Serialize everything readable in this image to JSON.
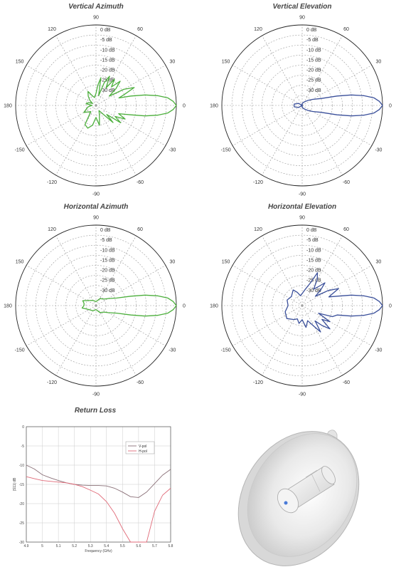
{
  "chart_data": [
    {
      "type": "polar",
      "title": "Vertical Azimuth",
      "angle_tick_labels": [
        "0",
        "30",
        "60",
        "90",
        "120",
        "150",
        "180",
        "-150",
        "-120",
        "-90",
        "-60",
        "-30"
      ],
      "radial_tick_labels": [
        "0 dB",
        "-5 dB",
        "-10 dB",
        "-15 dB",
        "-20 dB",
        "-25 dB",
        "-30 dB"
      ],
      "rlim_db": [
        -40,
        0
      ],
      "color": "#4caf3c",
      "series": [
        {
          "theta_deg": [
            0,
            3,
            6,
            9,
            12,
            15,
            18,
            21,
            25,
            30,
            35,
            40,
            45,
            50,
            55,
            60,
            65,
            70,
            75,
            80,
            85,
            90,
            100,
            110,
            120,
            130,
            140,
            150,
            160,
            170,
            180,
            190,
            200,
            210,
            220,
            230,
            240,
            250,
            260,
            270,
            280,
            290,
            300,
            310,
            315,
            320,
            325,
            330,
            335,
            340,
            345,
            348,
            351,
            354,
            357
          ],
          "gain_db": [
            0,
            -1.5,
            -4,
            -9,
            -15,
            -22,
            -28,
            -25,
            -19,
            -24,
            -32,
            -27,
            -23,
            -28,
            -24,
            -30,
            -24,
            -28,
            -35,
            -26,
            -30,
            -34,
            -36,
            -35,
            -32,
            -34,
            -36,
            -38,
            -36,
            -35,
            -38,
            -36,
            -35,
            -33,
            -35,
            -36,
            -29,
            -28,
            -30,
            -34,
            -30,
            -35,
            -37,
            -34,
            -28,
            -33,
            -25,
            -29,
            -24,
            -28,
            -22,
            -15,
            -9,
            -4,
            -1.5
          ]
        }
      ]
    },
    {
      "type": "polar",
      "title": "Vertical Elevation",
      "angle_tick_labels": [
        "0",
        "30",
        "60",
        "90",
        "120",
        "150",
        "180",
        "-150",
        "-120",
        "-90",
        "-60",
        "-30"
      ],
      "radial_tick_labels": [
        "0 dB",
        "-5 dB",
        "-10 dB",
        "-15 dB",
        "-20 dB",
        "-25 dB",
        "-30 dB"
      ],
      "rlim_db": [
        -40,
        0
      ],
      "color": "#3a4f9a",
      "series": [
        {
          "theta_deg": [
            0,
            3,
            6,
            9,
            12,
            15,
            20,
            30,
            40,
            60,
            90,
            120,
            150,
            170,
            180,
            190,
            210,
            240,
            270,
            300,
            320,
            330,
            340,
            345,
            348,
            351,
            354,
            357
          ],
          "gain_db": [
            0,
            -1.5,
            -4,
            -9,
            -15,
            -22,
            -30,
            -34,
            -36,
            -38,
            -39,
            -40,
            -38,
            -36,
            -36,
            -36,
            -38,
            -40,
            -39,
            -38,
            -36,
            -34,
            -30,
            -22,
            -15,
            -9,
            -4,
            -1.5
          ]
        }
      ]
    },
    {
      "type": "polar",
      "title": "Horizontal Azimuth",
      "angle_tick_labels": [
        "0",
        "30",
        "60",
        "90",
        "120",
        "150",
        "180",
        "-150",
        "-120",
        "-90",
        "-60",
        "-30"
      ],
      "radial_tick_labels": [
        "0 dB",
        "-5 dB",
        "-10 dB",
        "-15 dB",
        "-20 dB",
        "-25 dB",
        "-30 dB"
      ],
      "rlim_db": [
        -40,
        0
      ],
      "color": "#4caf3c",
      "series": [
        {
          "theta_deg": [
            0,
            3,
            6,
            9,
            12,
            15,
            20,
            30,
            40,
            60,
            90,
            120,
            150,
            160,
            170,
            180,
            190,
            200,
            210,
            240,
            270,
            300,
            320,
            330,
            340,
            345,
            348,
            351,
            354,
            357
          ],
          "gain_db": [
            0,
            -1.5,
            -4,
            -9,
            -15,
            -22,
            -29,
            -33,
            -35,
            -36,
            -38,
            -37,
            -35,
            -33,
            -34,
            -34,
            -33,
            -35,
            -36,
            -37,
            -38,
            -36,
            -35,
            -33,
            -29,
            -22,
            -15,
            -9,
            -4,
            -1.5
          ]
        }
      ]
    },
    {
      "type": "polar",
      "title": "Horizontal Elevation",
      "angle_tick_labels": [
        "0",
        "30",
        "60",
        "90",
        "120",
        "150",
        "180",
        "-150",
        "-120",
        "-90",
        "-60",
        "-30"
      ],
      "radial_tick_labels": [
        "0 dB",
        "-5 dB",
        "-10 dB",
        "-15 dB",
        "-20 dB",
        "-25 dB",
        "-30 dB"
      ],
      "rlim_db": [
        -40,
        0
      ],
      "color": "#3a4f9a",
      "series": [
        {
          "theta_deg": [
            0,
            3,
            6,
            9,
            12,
            15,
            18,
            21,
            25,
            30,
            35,
            40,
            45,
            50,
            55,
            60,
            65,
            70,
            80,
            90,
            100,
            110,
            120,
            140,
            160,
            180,
            200,
            220,
            240,
            250,
            260,
            270,
            280,
            290,
            300,
            305,
            310,
            315,
            320,
            325,
            330,
            335,
            340,
            345,
            348,
            351,
            354,
            357
          ],
          "gain_db": [
            0,
            -1.5,
            -4,
            -9,
            -15,
            -22,
            -26,
            -24,
            -20,
            -25,
            -32,
            -28,
            -24,
            -28,
            -30,
            -25,
            -22,
            -28,
            -32,
            -34,
            -35,
            -33,
            -31,
            -33,
            -32,
            -33,
            -31,
            -30,
            -32,
            -33,
            -31,
            -33,
            -29,
            -32,
            -28,
            -24,
            -30,
            -26,
            -22,
            -28,
            -24,
            -31,
            -24,
            -22,
            -15,
            -9,
            -4,
            -1.5
          ]
        }
      ]
    },
    {
      "type": "line",
      "title": "Return Loss",
      "xlabel": "Frequency (GHz)",
      "ylabel": "|S11| dB",
      "xlim": [
        4.9,
        5.8
      ],
      "ylim": [
        -30,
        0
      ],
      "x_tick_labels": [
        "4.9",
        "5",
        "5.1",
        "5.2",
        "5.3",
        "5.4",
        "5.5",
        "5.6",
        "5.7",
        "5.8"
      ],
      "y_tick_labels": [
        "0",
        "-5",
        "-10",
        "-15",
        "-20",
        "-25",
        "-30"
      ],
      "legend_position": "top-right",
      "grid": true,
      "x": [
        4.9,
        4.95,
        5.0,
        5.05,
        5.1,
        5.15,
        5.2,
        5.25,
        5.3,
        5.35,
        5.4,
        5.45,
        5.5,
        5.55,
        5.6,
        5.65,
        5.7,
        5.75,
        5.8
      ],
      "series": [
        {
          "name": "V-pol",
          "color": "#8a7078",
          "values": [
            -10,
            -11,
            -12.5,
            -13.3,
            -14,
            -14.6,
            -15,
            -15.2,
            -15.3,
            -15.3,
            -15.4,
            -16,
            -17,
            -18.2,
            -18.4,
            -17,
            -14.8,
            -12.6,
            -11.1
          ]
        },
        {
          "name": "H-pol",
          "color": "#e06a78",
          "values": [
            -13,
            -13.5,
            -14,
            -14.2,
            -14.4,
            -14.6,
            -15,
            -15.6,
            -16.5,
            -17.5,
            -19.5,
            -22.5,
            -26.5,
            -30,
            -30,
            -30,
            -22,
            -17.8,
            -16
          ]
        }
      ]
    }
  ]
}
